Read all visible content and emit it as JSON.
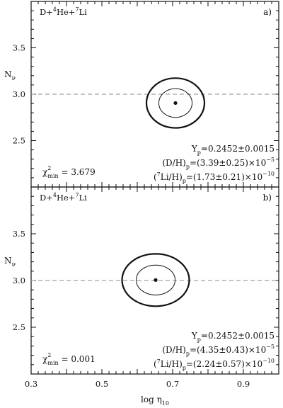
{
  "chart_data": [
    {
      "type": "contour",
      "panel_label": "a)",
      "reaction": {
        "base": "D+",
        "sup1": "4",
        "mid": "He+",
        "sup2": "7",
        "end": "Li"
      },
      "ylabel": {
        "base": "N",
        "sub": "ν"
      },
      "xlabel": "",
      "xlim": [
        0.3,
        1.0
      ],
      "ylim": [
        2.0,
        4.0
      ],
      "yticks": [
        2.5,
        3.0,
        3.5
      ],
      "yticklabels": [
        "2.5",
        "3.0",
        "3.5"
      ],
      "reference_line": {
        "y": 3.0,
        "style": "dashed"
      },
      "best_fit": {
        "x": 0.708,
        "y": 2.905
      },
      "contours": [
        {
          "level": "inner",
          "cx": 0.708,
          "cy": 2.905,
          "rx": 0.047,
          "ry": 0.155
        },
        {
          "level": "outer",
          "cx": 0.708,
          "cy": 2.905,
          "rx": 0.082,
          "ry": 0.268
        }
      ],
      "chi2": {
        "label": "χ",
        "sup": "2",
        "sub": "min",
        "value": " = 3.679"
      },
      "annotations": [
        {
          "base": "Y",
          "sub": "p",
          "value": "=0.2452±0.0015",
          "exp": ""
        },
        {
          "pre": "(D/H)",
          "sub": "p",
          "value": "=(3.39±0.25)×10",
          "exp": "−5"
        },
        {
          "pre": "(",
          "presup": "7",
          "mid": "Li/H)",
          "sub": "p",
          "value": "=(1.73±0.21)×10",
          "exp": "−10"
        }
      ]
    },
    {
      "type": "contour",
      "panel_label": "b)",
      "reaction": {
        "base": "D+",
        "sup1": "4",
        "mid": "He+",
        "sup2": "7",
        "end": "Li"
      },
      "ylabel": {
        "base": "N",
        "sub": "ν"
      },
      "xlabel": {
        "base": "log η",
        "sub": "10"
      },
      "xlim": [
        0.3,
        1.0
      ],
      "ylim": [
        2.0,
        4.0
      ],
      "xticks": [
        0.3,
        0.5,
        0.7,
        0.9
      ],
      "xticklabels": [
        "0.3",
        "0.5",
        "0.7",
        "0.9"
      ],
      "yticks": [
        2.5,
        3.0,
        3.5
      ],
      "yticklabels": [
        "2.5",
        "3.0",
        "3.5"
      ],
      "reference_line": {
        "y": 3.0,
        "style": "dashed"
      },
      "best_fit": {
        "x": 0.652,
        "y": 3.005
      },
      "contours": [
        {
          "level": "inner",
          "cx": 0.652,
          "cy": 3.005,
          "rx": 0.055,
          "ry": 0.16
        },
        {
          "level": "outer",
          "cx": 0.652,
          "cy": 3.005,
          "rx": 0.095,
          "ry": 0.28
        }
      ],
      "chi2": {
        "label": "χ",
        "sup": "2",
        "sub": "min",
        "value": " = 0.001"
      },
      "annotations": [
        {
          "base": "Y",
          "sub": "p",
          "value": "=0.2452±0.0015",
          "exp": ""
        },
        {
          "pre": "(D/H)",
          "sub": "p",
          "value": "=(4.35±0.43)×10",
          "exp": "−5"
        },
        {
          "pre": "(",
          "presup": "7",
          "mid": "Li/H)",
          "sub": "p",
          "value": "=(2.24±0.57)×10",
          "exp": "−10"
        }
      ]
    }
  ]
}
